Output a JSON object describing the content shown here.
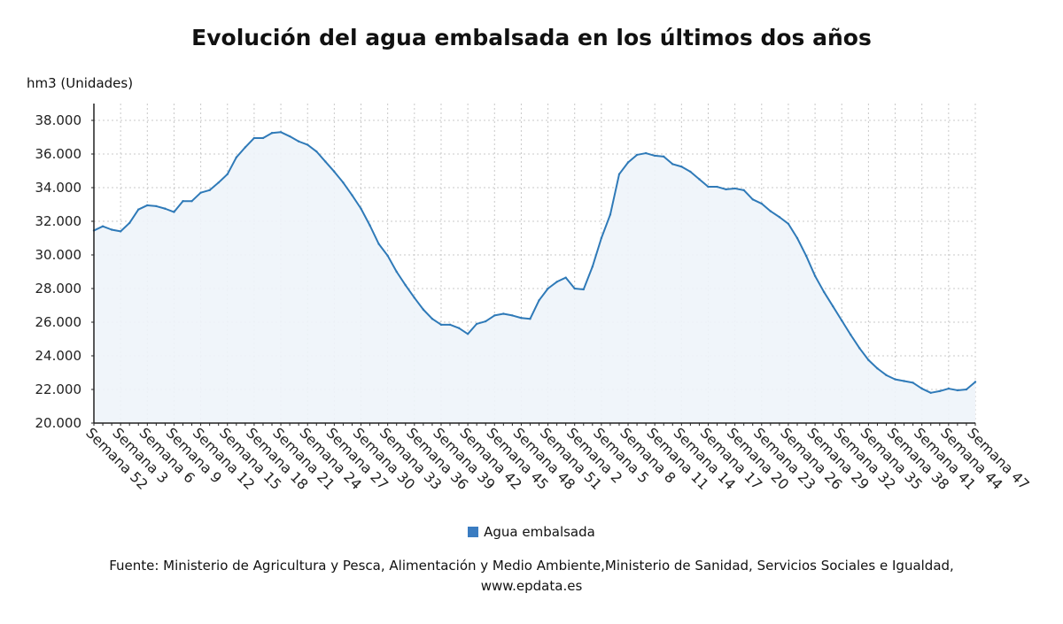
{
  "chart_data": {
    "type": "area",
    "title": "Evolución del agua embalsada en los últimos dos años",
    "ylabel": "hm3 (Unidades)",
    "xlabel": "",
    "ylim": [
      20000,
      39000
    ],
    "yticks": [
      20000,
      22000,
      24000,
      26000,
      28000,
      30000,
      32000,
      34000,
      36000,
      38000
    ],
    "ytick_labels": [
      "20.000",
      "22.000",
      "24.000",
      "26.000",
      "28.000",
      "30.000",
      "32.000",
      "34.000",
      "36.000",
      "38.000"
    ],
    "grid": true,
    "legend_position": "bottom-center",
    "x_tick_labels": [
      "Semana 52",
      "Semana 3",
      "Semana 6",
      "Semana 9",
      "Semana 12",
      "Semana 15",
      "Semana 18",
      "Semana 21",
      "Semana 24",
      "Semana 27",
      "Semana 30",
      "Semana 33",
      "Semana 36",
      "Semana 39",
      "Semana 42",
      "Semana 45",
      "Semana 48",
      "Semana 51",
      "Semana 2",
      "Semana 5",
      "Semana 8",
      "Semana 11",
      "Semana 14",
      "Semana 17",
      "Semana 20",
      "Semana 23",
      "Semana 26",
      "Semana 29",
      "Semana 32",
      "Semana 35",
      "Semana 38",
      "Semana 41",
      "Semana 44",
      "Semana 47"
    ],
    "series": [
      {
        "name": "Agua embalsada",
        "color": "#2f7ab8",
        "values": [
          31450,
          31700,
          31500,
          31400,
          31900,
          32700,
          32950,
          32900,
          32750,
          32550,
          33200,
          33200,
          33700,
          33850,
          34300,
          34800,
          35800,
          36400,
          36950,
          36950,
          37250,
          37300,
          37050,
          36750,
          36550,
          36150,
          35550,
          34950,
          34300,
          33550,
          32750,
          31750,
          30650,
          29950,
          29000,
          28200,
          27450,
          26750,
          26200,
          25850,
          25850,
          25650,
          25300,
          25900,
          26050,
          26400,
          26500,
          26400,
          26250,
          26200,
          27300,
          28000,
          28400,
          28650,
          28000,
          27950,
          29300,
          31000,
          32400,
          34800,
          35500,
          35950,
          36050,
          35900,
          35850,
          35400,
          35250,
          34950,
          34500,
          34050,
          34050,
          33900,
          33950,
          33850,
          33300,
          33050,
          32600,
          32250,
          31850,
          31000,
          29950,
          28750,
          27800,
          26950,
          26100,
          25250,
          24450,
          23750,
          23250,
          22850,
          22600,
          22500,
          22400,
          22050,
          21800,
          21900,
          22050,
          21950,
          22000,
          22450
        ]
      }
    ]
  },
  "legend": {
    "label": "Agua embalsada",
    "color": "#3a7cc1"
  },
  "source": {
    "line1": "Fuente: Ministerio de Agricultura y Pesca, Alimentación y Medio Ambiente,Ministerio de Sanidad, Servicios Sociales e Igualdad,",
    "line2": "www.epdata.es"
  }
}
